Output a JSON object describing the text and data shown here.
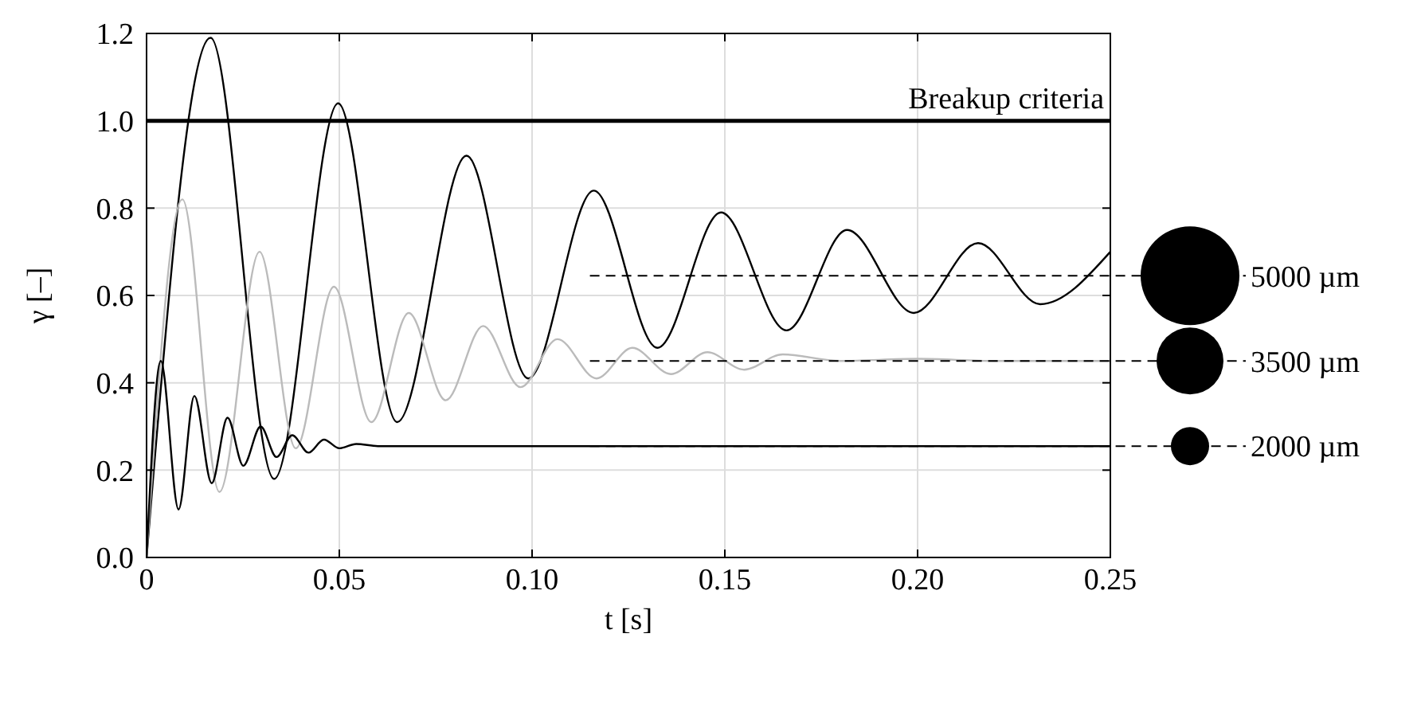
{
  "chart_data": {
    "type": "line",
    "xlabel": "t [s]",
    "ylabel": "γ [–]",
    "xlim": [
      0,
      0.25
    ],
    "xticks": [
      0,
      {
        "value": 0.05,
        "label": "0.05"
      },
      {
        "value": 0.1,
        "label": "0.10"
      },
      {
        "value": 0.15,
        "label": "0.15"
      },
      {
        "value": 0.2,
        "label": "0.20"
      },
      {
        "value": 0.25,
        "label": "0.25"
      }
    ],
    "ylim": [
      0,
      1.2
    ],
    "yticks": [
      {
        "value": 0,
        "label": "0.0"
      },
      {
        "value": 0.2,
        "label": "0.2"
      },
      {
        "value": 0.4,
        "label": "0.4"
      },
      {
        "value": 0.6,
        "label": "0.6"
      },
      {
        "value": 0.8,
        "label": "0.8"
      },
      {
        "value": 1,
        "label": "1.0"
      },
      {
        "value": 1.2,
        "label": "1.2"
      }
    ],
    "grid": true,
    "line_style": "solid",
    "series": [
      {
        "color": "#000000",
        "x": [
          0,
          0.0166,
          0.0331,
          0.0497,
          0.065,
          0.083,
          0.099,
          0.116,
          0.1325,
          0.149,
          0.166,
          0.1817,
          0.199,
          0.2157,
          0.2318,
          0.25
        ],
        "values": [
          0,
          1.19,
          0.18,
          1.04,
          0.31,
          0.92,
          0.41,
          0.84,
          0.48,
          0.79,
          0.52,
          0.75,
          0.56,
          0.72,
          0.58,
          0.7
        ]
      },
      {
        "color": "#bbbbbb",
        "x": [
          0,
          0.0093,
          0.0189,
          0.0293,
          0.0387,
          0.0486,
          0.0583,
          0.068,
          0.0776,
          0.0873,
          0.097,
          0.1066,
          0.1167,
          0.126,
          0.136,
          0.1455,
          0.155,
          0.165,
          0.18,
          0.2,
          0.22,
          0.25
        ],
        "values": [
          0,
          0.82,
          0.15,
          0.7,
          0.25,
          0.62,
          0.31,
          0.56,
          0.36,
          0.53,
          0.39,
          0.5,
          0.41,
          0.48,
          0.42,
          0.47,
          0.43,
          0.465,
          0.45,
          0.455,
          0.45,
          0.45
        ]
      },
      {
        "color": "#000000",
        "x": [
          0,
          0.0037,
          0.0083,
          0.0124,
          0.0169,
          0.021,
          0.0251,
          0.0296,
          0.0337,
          0.0378,
          0.042,
          0.046,
          0.05,
          0.0544,
          0.06,
          0.08,
          0.25
        ],
        "values": [
          0,
          0.45,
          0.11,
          0.37,
          0.17,
          0.32,
          0.21,
          0.3,
          0.23,
          0.28,
          0.24,
          0.27,
          0.25,
          0.26,
          0.255,
          0.255,
          0.255
        ]
      }
    ],
    "ref_lines": [
      {
        "axis": "y",
        "value": 1.0,
        "label": "Breakup criteria",
        "color": "#000000",
        "line_style": "solid"
      },
      {
        "axis": "y",
        "value": 0.645,
        "label": "5000 µm",
        "color": "#000000",
        "line_style": "dashed"
      },
      {
        "axis": "y",
        "value": 0.45,
        "label": "3500 µm",
        "color": "#000000",
        "line_style": "dashed"
      },
      {
        "axis": "y",
        "value": 0.255,
        "label": "2000 µm",
        "color": "#000000",
        "line_style": "dashed"
      }
    ]
  }
}
